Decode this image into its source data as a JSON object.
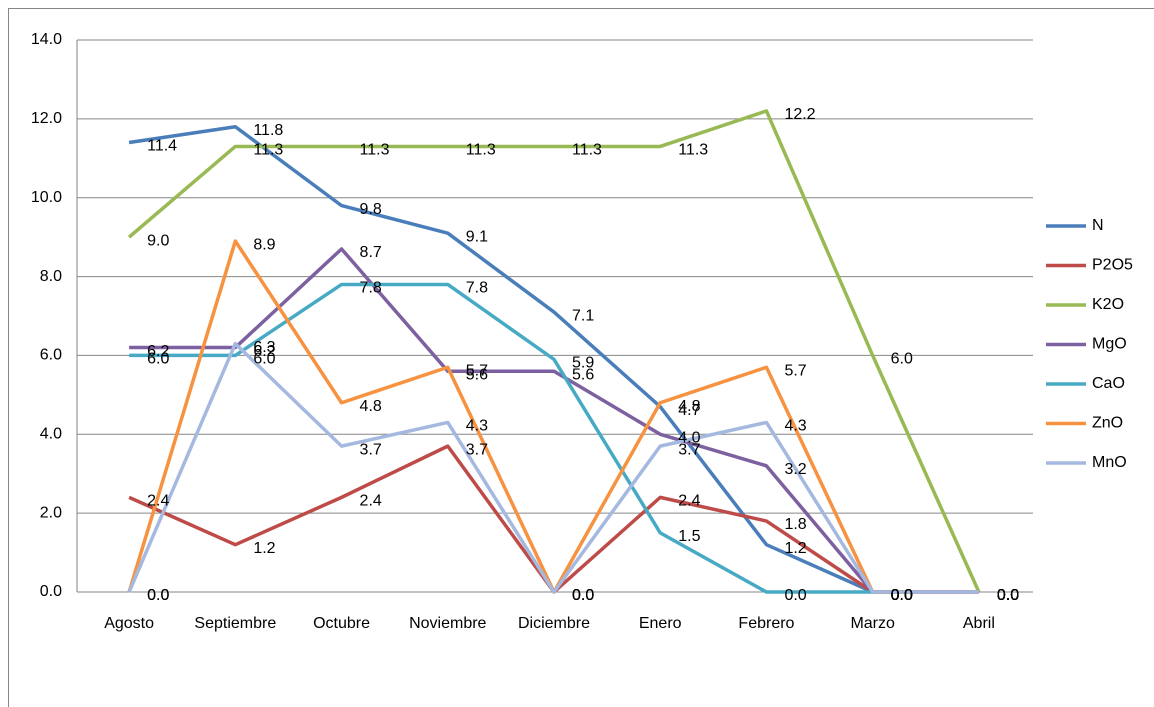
{
  "chart_data": {
    "type": "line",
    "categories": [
      "Agosto",
      "Septiembre",
      "Octubre",
      "Noviembre",
      "Diciembre",
      "Enero",
      "Febrero",
      "Marzo",
      "Abril"
    ],
    "ylim": [
      0,
      14
    ],
    "yticks": [
      {
        "value": 0,
        "label": "0.0"
      },
      {
        "value": 2,
        "label": "2.0"
      },
      {
        "value": 4,
        "label": "4.0"
      },
      {
        "value": 6,
        "label": "6.0"
      },
      {
        "value": 8,
        "label": "8.0"
      },
      {
        "value": 10,
        "label": "10.0"
      },
      {
        "value": 12,
        "label": "12.0"
      },
      {
        "value": 14,
        "label": "14.0"
      }
    ],
    "grid": true,
    "legend": "right",
    "series": [
      {
        "name": "N",
        "color": "#4a7ebb",
        "values": [
          11.4,
          11.8,
          9.8,
          9.1,
          7.1,
          4.7,
          1.2,
          0,
          0
        ],
        "value_labels": [
          "11.4",
          "11.8",
          "9.8",
          "9.1",
          "7.1",
          "4.7",
          "1.2",
          "0.0",
          "0.0"
        ]
      },
      {
        "name": "P2O5",
        "color": "#be4b48",
        "values": [
          2.4,
          1.2,
          2.4,
          3.7,
          0,
          2.4,
          1.8,
          0,
          0
        ],
        "value_labels": [
          "2.4",
          "1.2",
          "2.4",
          "3.7",
          "0.0",
          "2.4",
          "1.8",
          "0.0",
          "0.0"
        ]
      },
      {
        "name": "K2O",
        "color": "#98b954",
        "values": [
          9,
          11.3,
          11.3,
          11.3,
          11.3,
          11.3,
          12.2,
          6,
          0
        ],
        "value_labels": [
          "9.0",
          "11.3",
          "11.3",
          "11.3",
          "11.3",
          "11.3",
          "12.2",
          "6.0",
          "0.0"
        ]
      },
      {
        "name": "MgO",
        "color": "#7d60a0",
        "values": [
          6.2,
          6.2,
          8.7,
          5.6,
          5.6,
          4,
          3.2,
          0,
          0
        ],
        "value_labels": [
          "6.2",
          "6.2",
          "8.7",
          "5.6",
          "5.6",
          "4.0",
          "3.2",
          "0.0",
          "0.0"
        ]
      },
      {
        "name": "CaO",
        "color": "#46aac5",
        "values": [
          6,
          6,
          7.8,
          7.8,
          5.9,
          1.5,
          0,
          0,
          0
        ],
        "value_labels": [
          "6.0",
          "6.0",
          "7.8",
          "7.8",
          "5.9",
          "1.5",
          "0.0",
          "0.0",
          "0.0"
        ]
      },
      {
        "name": "ZnO",
        "color": "#f69240",
        "values": [
          0,
          8.9,
          4.8,
          5.7,
          0,
          4.8,
          5.7,
          0,
          0
        ],
        "value_labels": [
          "0.0",
          "8.9",
          "4.8",
          "5.7",
          "0.0",
          "4.8",
          "5.7",
          "0.0",
          "0.0"
        ]
      },
      {
        "name": "MnO",
        "color": "#a5b9e0",
        "values": [
          0,
          6.3,
          3.7,
          4.3,
          0,
          3.7,
          4.3,
          0,
          0
        ],
        "value_labels": [
          "0.0",
          "6.3",
          "3.7",
          "4.3",
          "0.0",
          "3.7",
          "4.3",
          "0.0",
          "0.0"
        ]
      }
    ]
  }
}
